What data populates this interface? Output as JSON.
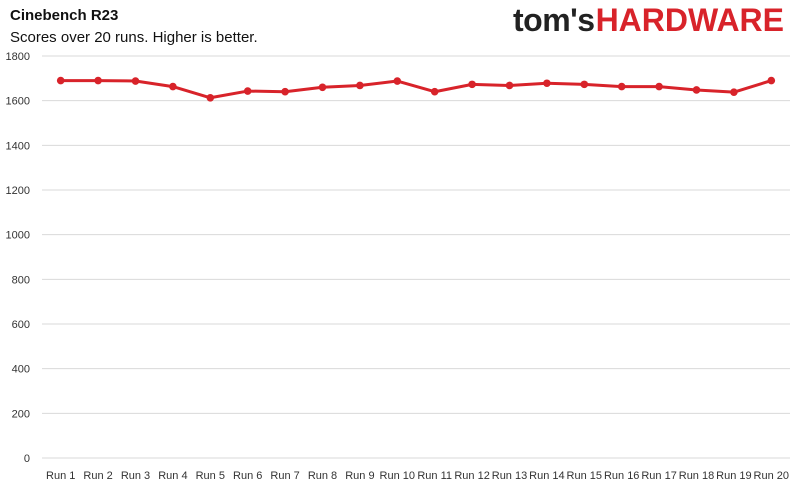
{
  "header": {
    "title": "Cinebench R23",
    "subtitle": "Scores over 20 runs. Higher is better."
  },
  "logo": {
    "part1": "tom's",
    "part2": "HARDWARE",
    "accent_color": "#d8232a"
  },
  "colors": {
    "series": "#d8232a",
    "grid": "#d9d9d9"
  },
  "chart_data": {
    "type": "line",
    "title": "Cinebench R23",
    "subtitle": "Scores over 20 runs. Higher is better.",
    "xlabel": "",
    "ylabel": "",
    "categories": [
      "Run 1",
      "Run 2",
      "Run 3",
      "Run 4",
      "Run 5",
      "Run 6",
      "Run 7",
      "Run 8",
      "Run 9",
      "Run 10",
      "Run 11",
      "Run 12",
      "Run 13",
      "Run 14",
      "Run 15",
      "Run 16",
      "Run 17",
      "Run 18",
      "Run 19",
      "Run 20"
    ],
    "series": [
      {
        "values": [
          1690,
          1690,
          1688,
          1663,
          1613,
          1643,
          1640,
          1660,
          1668,
          1688,
          1640,
          1673,
          1668,
          1678,
          1673,
          1663,
          1663,
          1648,
          1638,
          1690
        ]
      }
    ],
    "ylim": [
      0,
      1800
    ],
    "yticks": [
      0,
      200,
      400,
      600,
      800,
      1000,
      1200,
      1400,
      1600,
      1800
    ],
    "grid": true,
    "legend": "none"
  }
}
